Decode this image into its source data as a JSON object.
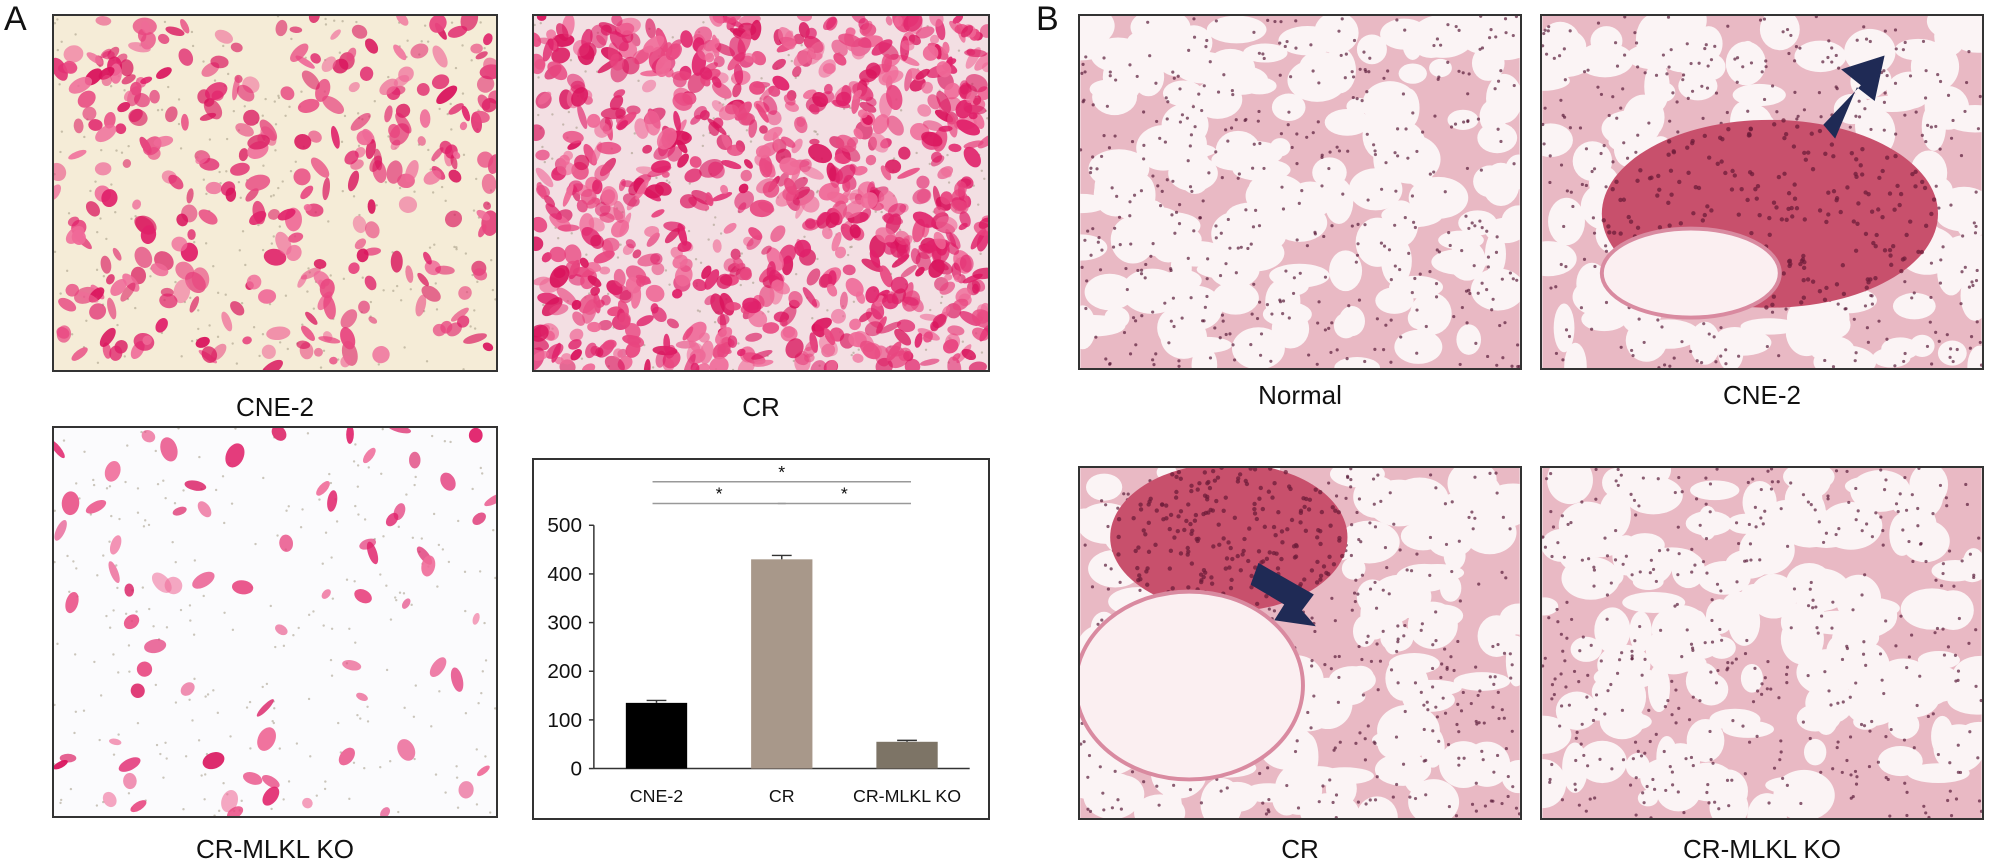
{
  "figure": {
    "panel_a_letter": "A",
    "panel_b_letter": "B"
  },
  "panel_a": {
    "images": [
      {
        "caption": "CNE-2",
        "stain": "sparse-pink-cells",
        "density": 0.35
      },
      {
        "caption": "CR",
        "stain": "dense-pink-cells",
        "density": 0.95
      },
      {
        "caption": "CR-MLKL KO",
        "stain": "scattered-pink-dots",
        "density": 0.08
      }
    ]
  },
  "panel_b": {
    "images": [
      {
        "caption": "Normal",
        "tissue": "lung-normal"
      },
      {
        "caption": "CNE-2",
        "tissue": "lung-metastasis",
        "arrow": "arrow-icon"
      },
      {
        "caption": "CR",
        "tissue": "lung-metastasis-bronchus",
        "arrow": "arrow-icon"
      },
      {
        "caption": "CR-MLKL KO",
        "tissue": "lung-normal"
      }
    ]
  },
  "chart_data": {
    "type": "bar",
    "categories": [
      "CNE-2",
      "CR",
      "CR-MLKL KO"
    ],
    "values": [
      135,
      430,
      55
    ],
    "errors": [
      5,
      8,
      3
    ],
    "colors": [
      "#000000",
      "#a8988a",
      "#7d7466"
    ],
    "yticks": [
      0,
      100,
      200,
      300,
      400,
      500
    ],
    "ylim": [
      0,
      500
    ],
    "significance": [
      {
        "from": 0,
        "to": 2,
        "label": "*"
      },
      {
        "from": 0,
        "to": 1,
        "label": "*"
      },
      {
        "from": 1,
        "to": 2,
        "label": "*"
      }
    ]
  }
}
